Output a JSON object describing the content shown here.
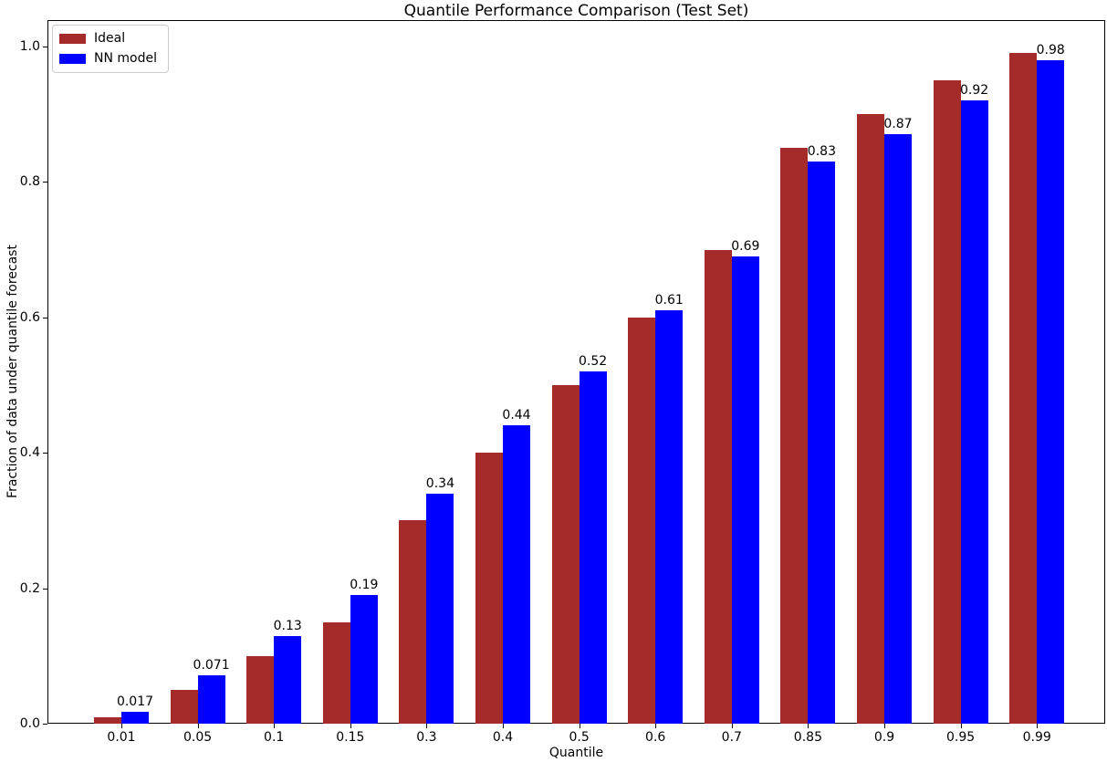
{
  "chart_data": {
    "type": "bar",
    "title": "Quantile Performance Comparison (Test Set)",
    "xlabel": "Quantile",
    "ylabel": "Fraction of data under quantile forecast",
    "categories": [
      "0.01",
      "0.05",
      "0.1",
      "0.15",
      "0.3",
      "0.4",
      "0.5",
      "0.6",
      "0.7",
      "0.85",
      "0.9",
      "0.95",
      "0.99"
    ],
    "series": [
      {
        "name": "Ideal",
        "color": "#A52A2A",
        "values": [
          0.01,
          0.05,
          0.1,
          0.15,
          0.3,
          0.4,
          0.5,
          0.6,
          0.7,
          0.85,
          0.9,
          0.95,
          0.99
        ]
      },
      {
        "name": "NN model",
        "color": "#0000FF",
        "values": [
          0.017,
          0.071,
          0.13,
          0.19,
          0.34,
          0.44,
          0.52,
          0.61,
          0.69,
          0.83,
          0.87,
          0.92,
          0.98
        ],
        "bar_labels": [
          "0.017",
          "0.071",
          "0.13",
          "0.19",
          "0.34",
          "0.44",
          "0.52",
          "0.61",
          "0.69",
          "0.83",
          "0.87",
          "0.92",
          "0.98"
        ]
      }
    ],
    "yticks": [
      "0.0",
      "0.2",
      "0.4",
      "0.6",
      "0.8",
      "1.0"
    ],
    "ylim": [
      0,
      1.039
    ],
    "grid": false,
    "legend_position": "upper left",
    "axis_color": "#000000",
    "text_color": "#000000",
    "legend_border_color": "#cccccc"
  }
}
